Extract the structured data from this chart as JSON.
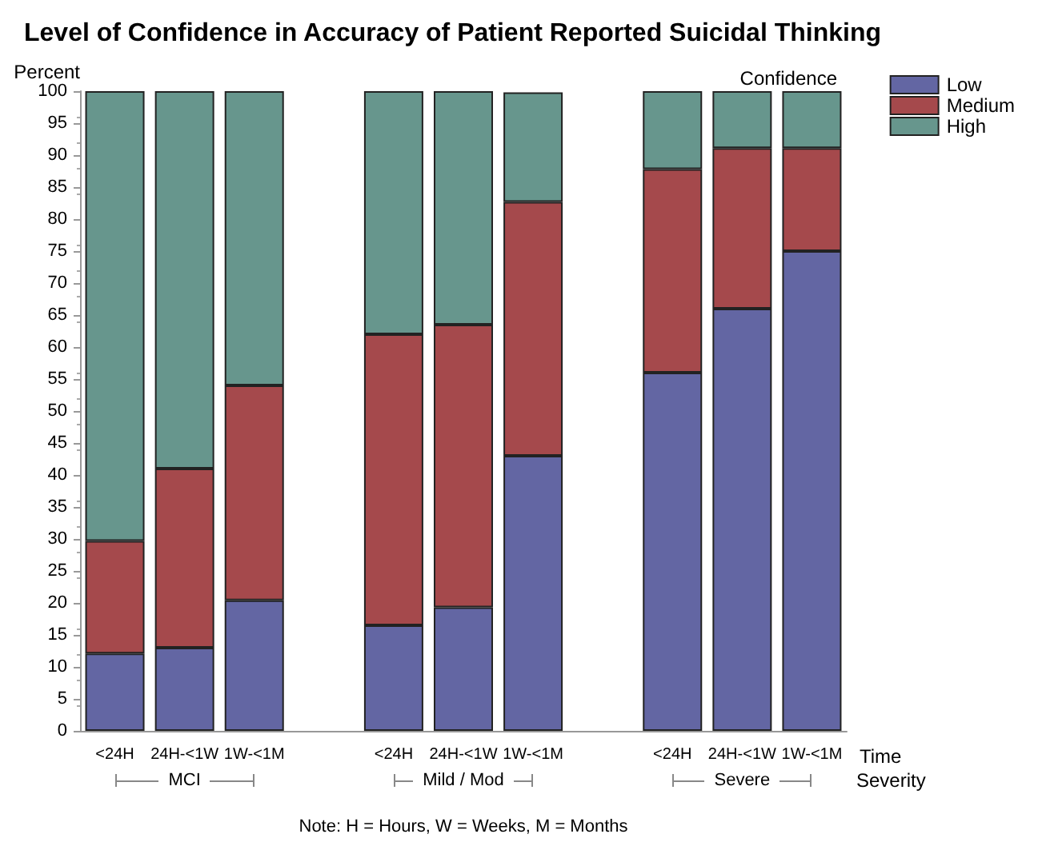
{
  "chart_data": {
    "type": "bar",
    "title": "Level of Confidence in Accuracy of Patient Reported Suicidal Thinking",
    "ylabel": "Percent",
    "xlabel": "Time",
    "legend_title": "Confidence",
    "categories": [
      "<24H",
      "24H-<1W",
      "1W-<1M",
      "<24H",
      "24H-<1W",
      "1W-<1M",
      "<24H",
      "24H-<1W",
      "1W-<1M"
    ],
    "series": [
      {
        "name": "Low",
        "color": "#6366a3",
        "values": [
          12.1,
          13,
          20.4,
          16.5,
          19.3,
          43,
          56,
          66,
          75
        ]
      },
      {
        "name": "Medium",
        "color": "#a5494c",
        "values": [
          17.6,
          28,
          33.6,
          45.5,
          44.2,
          39.7,
          31.8,
          25.1,
          16.1
        ]
      },
      {
        "name": "High",
        "color": "#67968d",
        "values": [
          70.3,
          59,
          46,
          38,
          36.5,
          17.1,
          12.2,
          8.9,
          8.9
        ]
      }
    ],
    "stacked": true,
    "ylim": [
      0,
      100
    ],
    "yticks": [
      0,
      5,
      10,
      15,
      20,
      25,
      30,
      35,
      40,
      45,
      50,
      55,
      60,
      65,
      70,
      75,
      80,
      85,
      90,
      95,
      100
    ],
    "grid": false,
    "legend": "top right",
    "annotations": [
      "MCI",
      "Mild / Mod",
      "Severe",
      "Severity",
      "Note: H = Hours, W = Weeks, M = Months"
    ]
  }
}
